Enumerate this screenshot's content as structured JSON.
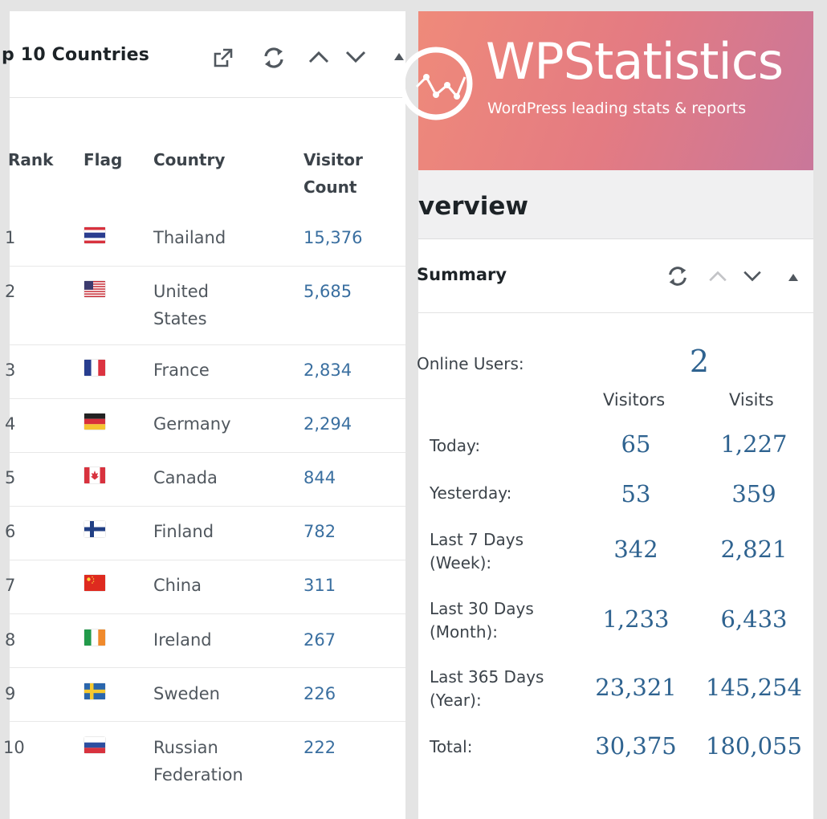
{
  "countries_widget": {
    "title": "p 10 Countries",
    "columns": {
      "rank": "Rank",
      "flag": "Flag",
      "country": "Country",
      "count_line1": "Visitor",
      "count_line2": "Count"
    },
    "rows": [
      {
        "rank": "1",
        "country_line1": "Thailand",
        "country_line2": "",
        "count": "15,376",
        "flag": "thailand-flag"
      },
      {
        "rank": "2",
        "country_line1": "United",
        "country_line2": "States",
        "count": "5,685",
        "flag": "united-states-flag"
      },
      {
        "rank": "3",
        "country_line1": "France",
        "country_line2": "",
        "count": "2,834",
        "flag": "france-flag"
      },
      {
        "rank": "4",
        "country_line1": "Germany",
        "country_line2": "",
        "count": "2,294",
        "flag": "germany-flag"
      },
      {
        "rank": "5",
        "country_line1": "Canada",
        "country_line2": "",
        "count": "844",
        "flag": "canada-flag"
      },
      {
        "rank": "6",
        "country_line1": "Finland",
        "country_line2": "",
        "count": "782",
        "flag": "finland-flag"
      },
      {
        "rank": "7",
        "country_line1": "China",
        "country_line2": "",
        "count": "311",
        "flag": "china-flag"
      },
      {
        "rank": "8",
        "country_line1": "Ireland",
        "country_line2": "",
        "count": "267",
        "flag": "ireland-flag"
      },
      {
        "rank": "9",
        "country_line1": "Sweden",
        "country_line2": "",
        "count": "226",
        "flag": "sweden-flag"
      },
      {
        "rank": "10",
        "country_line1": "Russian",
        "country_line2": "Federation",
        "count": "222",
        "flag": "russia-flag"
      }
    ]
  },
  "brand": {
    "name": "WPStatistics",
    "tagline": "WordPress leading stats & reports",
    "accent_from": "#ef8a7a",
    "accent_to": "#c9779a"
  },
  "overview": {
    "title": "verview"
  },
  "summary": {
    "title": "Summary",
    "online_label": "Online Users:",
    "online_value": "2",
    "col_visitors": "Visitors",
    "col_visits": "Visits",
    "rows": [
      {
        "label_line1": "Today:",
        "label_line2": "",
        "visitors": "65",
        "visits": "1,227"
      },
      {
        "label_line1": "Yesterday:",
        "label_line2": "",
        "visitors": "53",
        "visits": "359"
      },
      {
        "label_line1": "Last 7 Days",
        "label_line2": "(Week):",
        "visitors": "342",
        "visits": "2,821"
      },
      {
        "label_line1": "Last 30 Days",
        "label_line2": "(Month):",
        "visitors": "1,233",
        "visits": "6,433"
      },
      {
        "label_line1": "Last 365 Days",
        "label_line2": "(Year):",
        "visitors": "23,321",
        "visits": "145,254"
      },
      {
        "label_line1": "Total:",
        "label_line2": "",
        "visitors": "30,375",
        "visits": "180,055"
      }
    ]
  },
  "colors": {
    "link_blue": "#3a6fa0",
    "serif_blue": "#2f6390"
  }
}
